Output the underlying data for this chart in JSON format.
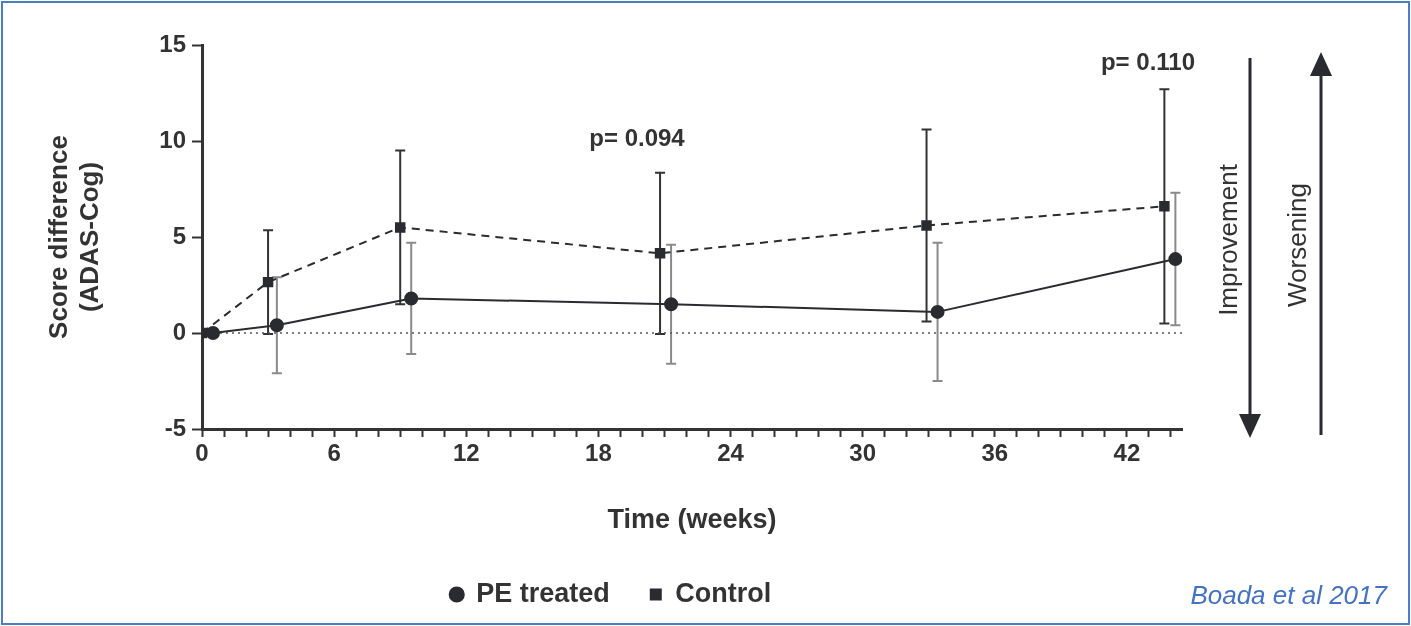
{
  "chart_data": {
    "type": "line",
    "xlabel": "Time (weeks)",
    "ylabel": "Score difference\n(ADAS-Cog)",
    "xlim": [
      0,
      44.5
    ],
    "xticks": [
      0,
      {
        "value": 1,
        "label": null
      },
      {
        "value": 2,
        "label": null
      },
      {
        "value": 3,
        "label": null
      },
      {
        "value": 4,
        "label": null
      },
      {
        "value": 5,
        "label": null
      },
      6,
      {
        "value": 7,
        "label": null
      },
      {
        "value": 8,
        "label": null
      },
      {
        "value": 9,
        "label": null
      },
      {
        "value": 10,
        "label": null
      },
      {
        "value": 11,
        "label": null
      },
      12,
      {
        "value": 13,
        "label": null
      },
      {
        "value": 14,
        "label": null
      },
      {
        "value": 15,
        "label": null
      },
      {
        "value": 16,
        "label": null
      },
      {
        "value": 17,
        "label": null
      },
      18,
      {
        "value": 19,
        "label": null
      },
      {
        "value": 20,
        "label": null
      },
      {
        "value": 21,
        "label": null
      },
      {
        "value": 22,
        "label": null
      },
      {
        "value": 23,
        "label": null
      },
      24,
      {
        "value": 25,
        "label": null
      },
      {
        "value": 26,
        "label": null
      },
      {
        "value": 27,
        "label": null
      },
      {
        "value": 28,
        "label": null
      },
      {
        "value": 29,
        "label": null
      },
      30,
      {
        "value": 31,
        "label": null
      },
      {
        "value": 32,
        "label": null
      },
      {
        "value": 33,
        "label": null
      },
      {
        "value": 34,
        "label": null
      },
      {
        "value": 35,
        "label": null
      },
      36,
      {
        "value": 37,
        "label": null
      },
      {
        "value": 38,
        "label": null
      },
      {
        "value": 39,
        "label": null
      },
      {
        "value": 40,
        "label": null
      },
      {
        "value": 41,
        "label": null
      },
      42,
      {
        "value": 43,
        "label": null
      },
      {
        "value": 44,
        "label": null
      }
    ],
    "ylim": [
      -5,
      15
    ],
    "yticks": [
      -5,
      0,
      5,
      10,
      15
    ],
    "grid": false,
    "legend": "bottom",
    "series": [
      {
        "name": "PE treated",
        "color": "#2a2b30",
        "marker": "circle",
        "line_style": "solid",
        "x": [
          0.5,
          3.4,
          9.5,
          21.3,
          33.4,
          44.2
        ],
        "values": [
          0,
          0.4,
          1.8,
          1.5,
          1.1,
          3.85
        ],
        "errors": [
          null,
          2.5,
          2.9,
          3.1,
          3.6,
          3.45
        ]
      },
      {
        "name": "Control",
        "color": "#2a2b30",
        "marker": "square",
        "line_style": "dashed",
        "x": [
          0,
          3,
          9,
          20.8,
          32.9,
          43.7
        ],
        "values": [
          0,
          2.65,
          5.5,
          4.15,
          5.6,
          6.6
        ],
        "errors": [
          null,
          2.7,
          4,
          4.2,
          5,
          6.1
        ]
      }
    ],
    "ref_lines": [
      {
        "axis": "y",
        "value": 0,
        "line_style": "dotted",
        "color": "#555555"
      }
    ],
    "annotations": [
      "p= 0.094",
      "p= 0.110",
      "Improvement",
      "Worsening",
      "Boada et al 2017"
    ]
  }
}
